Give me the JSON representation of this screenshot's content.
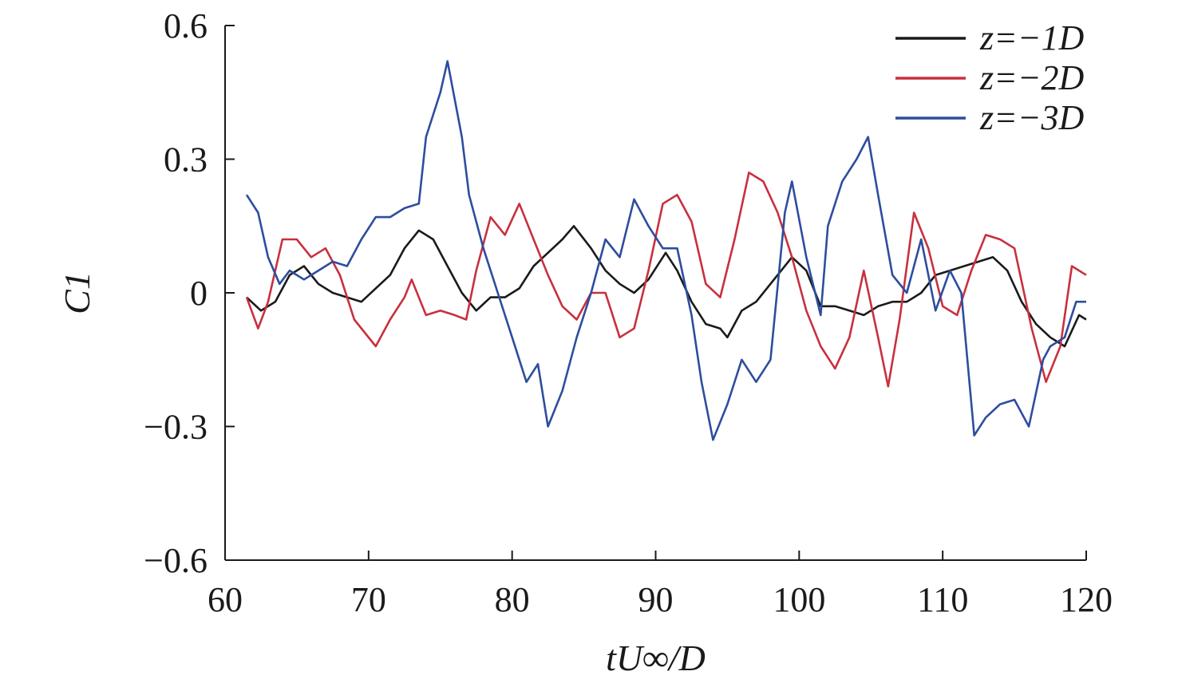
{
  "chart_data": {
    "type": "line",
    "title": "",
    "xlabel": "tU∞/D",
    "ylabel": "C1",
    "xlim": [
      60,
      120
    ],
    "ylim": [
      -0.6,
      0.6
    ],
    "xticks": [
      60,
      70,
      80,
      90,
      100,
      110,
      120
    ],
    "xtick_labels": [
      "60",
      "70",
      "80",
      "90",
      "100",
      "110",
      "120"
    ],
    "yticks": [
      0.6,
      0.3,
      0,
      -0.3,
      -0.6
    ],
    "ytick_labels": [
      "0.6",
      "0.3",
      "0",
      "−0.3",
      "−0.6"
    ],
    "grid": false,
    "legend_position": "top-right",
    "series": [
      {
        "name": "z=−1D",
        "color": "#1a1a1a",
        "x": [
          61.5,
          62.5,
          63.5,
          64.5,
          65.5,
          66.5,
          67.5,
          68.5,
          69.5,
          70.5,
          71.5,
          72.5,
          73.5,
          74.5,
          75.5,
          76.5,
          77.5,
          78.5,
          79.5,
          80.5,
          81.5,
          82.5,
          83.5,
          84.3,
          85.5,
          86.5,
          87.5,
          88.5,
          89.5,
          90.7,
          91.5,
          92.5,
          93.5,
          94.5,
          95,
          96,
          97,
          98,
          99.5,
          100.5,
          101.5,
          102.5,
          103.5,
          104.5,
          105.5,
          106.5,
          107.5,
          108.5,
          109.5,
          110.5,
          111.5,
          112.5,
          113.5,
          114.5,
          115.5,
          116.5,
          117.5,
          118.5,
          119.5,
          120
        ],
        "y": [
          -0.01,
          -0.04,
          -0.02,
          0.04,
          0.06,
          0.02,
          0.0,
          -0.01,
          -0.02,
          0.01,
          0.04,
          0.1,
          0.14,
          0.12,
          0.06,
          0.0,
          -0.04,
          -0.01,
          -0.01,
          0.01,
          0.06,
          0.09,
          0.12,
          0.15,
          0.1,
          0.05,
          0.02,
          0.0,
          0.03,
          0.09,
          0.05,
          -0.02,
          -0.07,
          -0.08,
          -0.1,
          -0.04,
          -0.02,
          0.02,
          0.08,
          0.05,
          -0.03,
          -0.03,
          -0.04,
          -0.05,
          -0.03,
          -0.02,
          -0.02,
          0.0,
          0.04,
          0.05,
          0.06,
          0.07,
          0.08,
          0.05,
          -0.02,
          -0.07,
          -0.1,
          -0.12,
          -0.05,
          -0.06
        ]
      },
      {
        "name": "z=−2D",
        "color": "#c8303e",
        "x": [
          61.5,
          62.3,
          63,
          64,
          65,
          66,
          67,
          68,
          69,
          70.5,
          71.5,
          72.5,
          73,
          74,
          75,
          76,
          76.8,
          77.5,
          78.5,
          79.5,
          80.5,
          81.5,
          82.5,
          83.5,
          84.5,
          85.5,
          86.5,
          87.5,
          88.5,
          89.5,
          90.5,
          91.5,
          92.5,
          93.5,
          94.5,
          95.5,
          96.5,
          97.5,
          98.5,
          99.5,
          100.5,
          101.5,
          102.5,
          103.5,
          104.5,
          105.5,
          106.2,
          107,
          108,
          109,
          110,
          111,
          112,
          113,
          114,
          115,
          116.2,
          117.2,
          118.2,
          119,
          120
        ],
        "y": [
          -0.01,
          -0.08,
          -0.02,
          0.12,
          0.12,
          0.08,
          0.1,
          0.04,
          -0.06,
          -0.12,
          -0.06,
          -0.01,
          0.03,
          -0.05,
          -0.04,
          -0.05,
          -0.06,
          0.05,
          0.17,
          0.13,
          0.2,
          0.12,
          0.04,
          -0.03,
          -0.06,
          0.0,
          0.0,
          -0.1,
          -0.08,
          0.05,
          0.2,
          0.22,
          0.16,
          0.02,
          -0.01,
          0.12,
          0.27,
          0.25,
          0.18,
          0.08,
          -0.04,
          -0.12,
          -0.17,
          -0.1,
          0.05,
          -0.1,
          -0.21,
          -0.06,
          0.18,
          0.1,
          -0.03,
          -0.05,
          0.05,
          0.13,
          0.12,
          0.1,
          -0.08,
          -0.2,
          -0.12,
          0.06,
          0.04
        ]
      },
      {
        "name": "z=−3D",
        "color": "#2d4d9e",
        "x": [
          61.5,
          62.3,
          63,
          63.8,
          64.5,
          65.5,
          66.5,
          67.5,
          68.5,
          69.5,
          70.5,
          71.5,
          72.5,
          73.5,
          74,
          75,
          75.5,
          76.5,
          77,
          78,
          79,
          80,
          81,
          81.8,
          82.5,
          83.5,
          84.5,
          85.5,
          86.5,
          87.5,
          88.5,
          89.5,
          90.5,
          91.5,
          92.5,
          93.2,
          94,
          95,
          96,
          97,
          98,
          99,
          99.5,
          100.5,
          101.5,
          102,
          103,
          104,
          104.8,
          105.5,
          106.5,
          107.5,
          108.5,
          109.5,
          110.5,
          111.3,
          112.2,
          113,
          114,
          115,
          116,
          117,
          117.5,
          118.5,
          119.3,
          120
        ],
        "y": [
          0.22,
          0.18,
          0.08,
          0.02,
          0.05,
          0.03,
          0.05,
          0.07,
          0.06,
          0.12,
          0.17,
          0.17,
          0.19,
          0.2,
          0.35,
          0.45,
          0.52,
          0.35,
          0.22,
          0.1,
          0.0,
          -0.1,
          -0.2,
          -0.16,
          -0.3,
          -0.22,
          -0.1,
          0.0,
          0.12,
          0.08,
          0.21,
          0.15,
          0.1,
          0.1,
          -0.05,
          -0.2,
          -0.33,
          -0.25,
          -0.15,
          -0.2,
          -0.15,
          0.18,
          0.25,
          0.08,
          -0.05,
          0.15,
          0.25,
          0.3,
          0.35,
          0.22,
          0.04,
          0.0,
          0.12,
          -0.04,
          0.05,
          0.0,
          -0.32,
          -0.28,
          -0.25,
          -0.24,
          -0.3,
          -0.15,
          -0.12,
          -0.1,
          -0.02,
          -0.02
        ]
      }
    ]
  }
}
